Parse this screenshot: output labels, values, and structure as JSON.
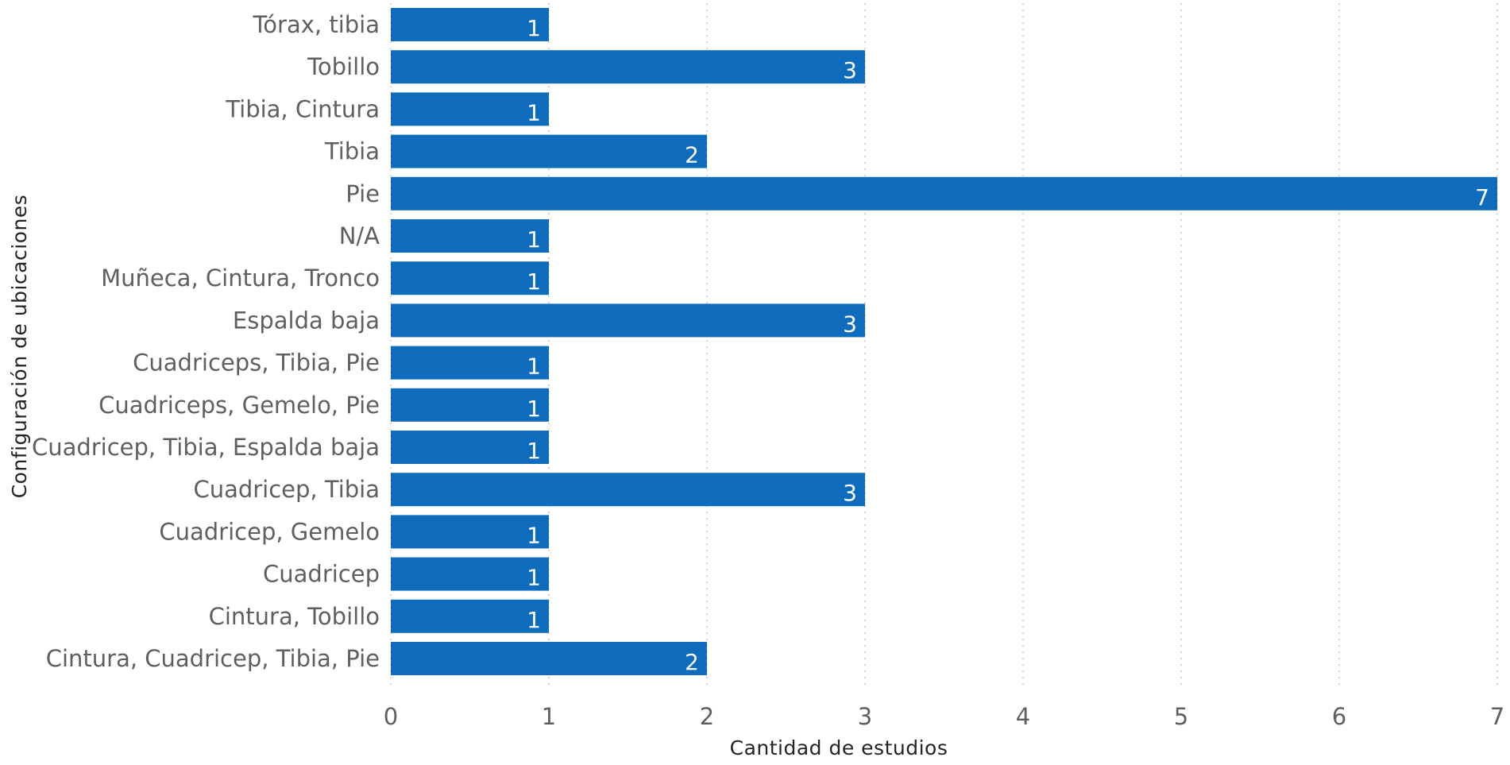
{
  "chart_data": {
    "type": "bar",
    "orientation": "horizontal",
    "categories": [
      "Tórax, tibia",
      "Tobillo",
      "Tibia, Cintura",
      "Tibia",
      "Pie",
      "N/A",
      "Muñeca, Cintura, Tronco",
      "Espalda baja",
      "Cuadriceps, Tibia, Pie",
      "Cuadriceps, Gemelo, Pie",
      "Cuadricep, Tibia, Espalda baja",
      "Cuadricep, Tibia",
      "Cuadricep, Gemelo",
      "Cuadricep",
      "Cintura, Tobillo",
      "Cintura, Cuadricep, Tibia, Pie"
    ],
    "values": [
      1,
      3,
      1,
      2,
      7,
      1,
      1,
      3,
      1,
      1,
      1,
      3,
      1,
      1,
      1,
      2
    ],
    "xlabel": "Cantidad de estudios",
    "ylabel": "Configuración de ubicaciones",
    "xlim": [
      0,
      7
    ],
    "xticks": [
      0,
      1,
      2,
      3,
      4,
      5,
      6,
      7
    ],
    "grid": "vertical dotted",
    "data_labels": true,
    "bar_color": "#0F6CBD"
  }
}
